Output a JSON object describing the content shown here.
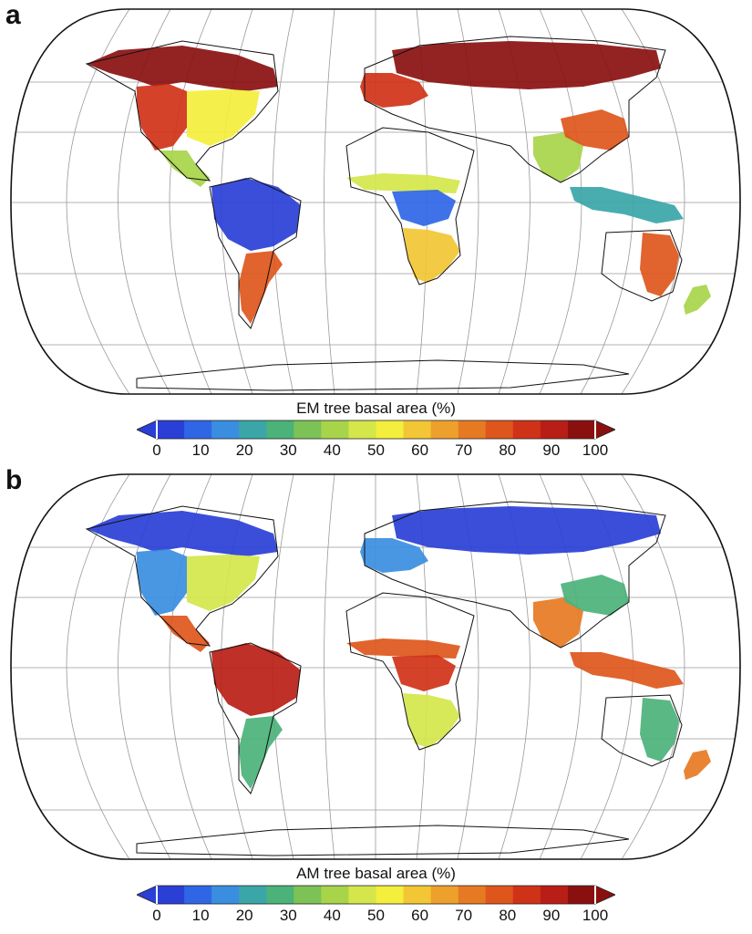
{
  "colorbar_colors": [
    "#2a3fd6",
    "#2f66e6",
    "#3a8ee0",
    "#3aa6a8",
    "#4bb27a",
    "#7cc256",
    "#a8d44a",
    "#d4e64a",
    "#f4ee3c",
    "#f2c634",
    "#eea02c",
    "#e67a22",
    "#de561c",
    "#d03218",
    "#b81e16",
    "#8a1010"
  ],
  "panels": [
    {
      "letter": "a",
      "legend": {
        "title": "EM tree basal area (%)",
        "ticks": [
          "0",
          "10",
          "20",
          "30",
          "40",
          "50",
          "60",
          "70",
          "80",
          "90",
          "100"
        ]
      },
      "regions": [
        {
          "name": "boreal-north-america",
          "value": 95
        },
        {
          "name": "western-north-america",
          "value": 85
        },
        {
          "name": "eastern-united-states",
          "value": 55
        },
        {
          "name": "central-america",
          "value": 40
        },
        {
          "name": "amazon",
          "value": 5
        },
        {
          "name": "southern-south-america",
          "value": 75
        },
        {
          "name": "siberia",
          "value": 95
        },
        {
          "name": "europe",
          "value": 85
        },
        {
          "name": "sahel",
          "value": 45
        },
        {
          "name": "congo-basin",
          "value": 10
        },
        {
          "name": "southern-africa",
          "value": 60
        },
        {
          "name": "southeast-asia",
          "value": 40
        },
        {
          "name": "east-asia",
          "value": 75
        },
        {
          "name": "indonesia",
          "value": 20
        },
        {
          "name": "australia-east",
          "value": 75
        },
        {
          "name": "new-zealand",
          "value": 40
        }
      ]
    },
    {
      "letter": "b",
      "legend": {
        "title": "AM tree basal area (%)",
        "ticks": [
          "0",
          "10",
          "20",
          "30",
          "40",
          "50",
          "60",
          "70",
          "80",
          "90",
          "100"
        ]
      },
      "regions": [
        {
          "name": "boreal-north-america",
          "value": 5
        },
        {
          "name": "western-north-america",
          "value": 15
        },
        {
          "name": "eastern-united-states",
          "value": 45
        },
        {
          "name": "central-america",
          "value": 75
        },
        {
          "name": "amazon",
          "value": 92
        },
        {
          "name": "southern-south-america",
          "value": 25
        },
        {
          "name": "siberia",
          "value": 5
        },
        {
          "name": "europe",
          "value": 15
        },
        {
          "name": "sahel",
          "value": 75
        },
        {
          "name": "congo-basin",
          "value": 85
        },
        {
          "name": "southern-africa",
          "value": 45
        },
        {
          "name": "southeast-asia",
          "value": 70
        },
        {
          "name": "east-asia",
          "value": 25
        },
        {
          "name": "indonesia",
          "value": 80
        },
        {
          "name": "australia-east",
          "value": 25
        },
        {
          "name": "new-zealand",
          "value": 70
        }
      ]
    }
  ]
}
